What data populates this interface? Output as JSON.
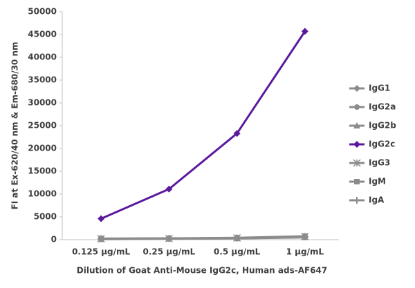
{
  "chart_data": {
    "type": "line",
    "x_label": "Dilution of Goat Anti-Mouse IgG2c, Human ads-AF647",
    "y_label": "FI at Ex-620/40 nm & Em-680/30 nm",
    "categories": [
      "0.125 µg/mL",
      "0.25 µg/mL",
      "0.5 µg/mL",
      "1 µg/mL"
    ],
    "ylim": [
      0,
      50000
    ],
    "yticks": [
      0,
      5000,
      10000,
      15000,
      20000,
      25000,
      30000,
      35000,
      40000,
      45000,
      50000
    ],
    "grid": false,
    "legend": "right",
    "series": [
      {
        "name": "IgG1",
        "color": "#8c8c8c",
        "marker": "diamond",
        "values": [
          150,
          220,
          330,
          600
        ]
      },
      {
        "name": "IgG2a",
        "color": "#8c8c8c",
        "marker": "circle",
        "values": [
          120,
          200,
          300,
          550
        ]
      },
      {
        "name": "IgG2b",
        "color": "#8c8c8c",
        "marker": "triangle",
        "values": [
          100,
          180,
          280,
          500
        ]
      },
      {
        "name": "IgG2c",
        "color": "#5b1a9e",
        "marker": "diamond",
        "values": [
          4600,
          11100,
          23300,
          45700
        ]
      },
      {
        "name": "IgG3",
        "color": "#8c8c8c",
        "marker": "star",
        "values": [
          200,
          250,
          380,
          700
        ]
      },
      {
        "name": "IgM",
        "color": "#8c8c8c",
        "marker": "square",
        "values": [
          250,
          300,
          420,
          750
        ]
      },
      {
        "name": "IgA",
        "color": "#8c8c8c",
        "marker": "plus",
        "values": [
          180,
          260,
          350,
          650
        ]
      }
    ]
  }
}
